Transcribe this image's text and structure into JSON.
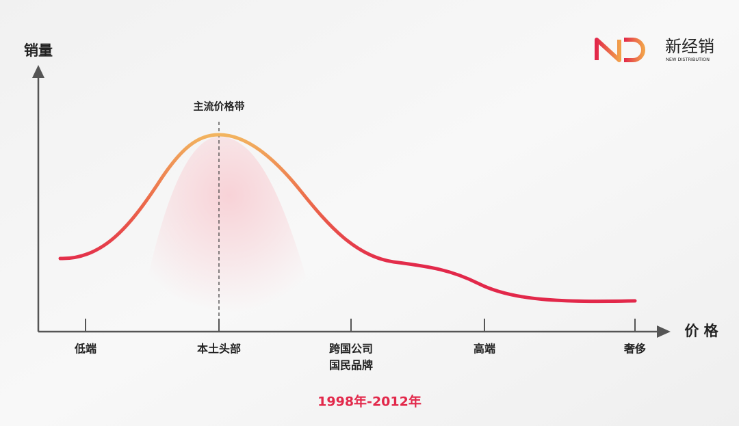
{
  "logo": {
    "name": "新经销",
    "subtitle": "NEW DISTRIBUTION"
  },
  "y_axis_label": "销量",
  "x_axis_label": "价 格",
  "annotation": "主流价格带",
  "categories": [
    [
      "低端"
    ],
    [
      "本土头部"
    ],
    [
      "跨国公司",
      "国民品牌"
    ],
    [
      "高端"
    ],
    [
      "奢侈"
    ]
  ],
  "caption": "1998年-2012年"
}
